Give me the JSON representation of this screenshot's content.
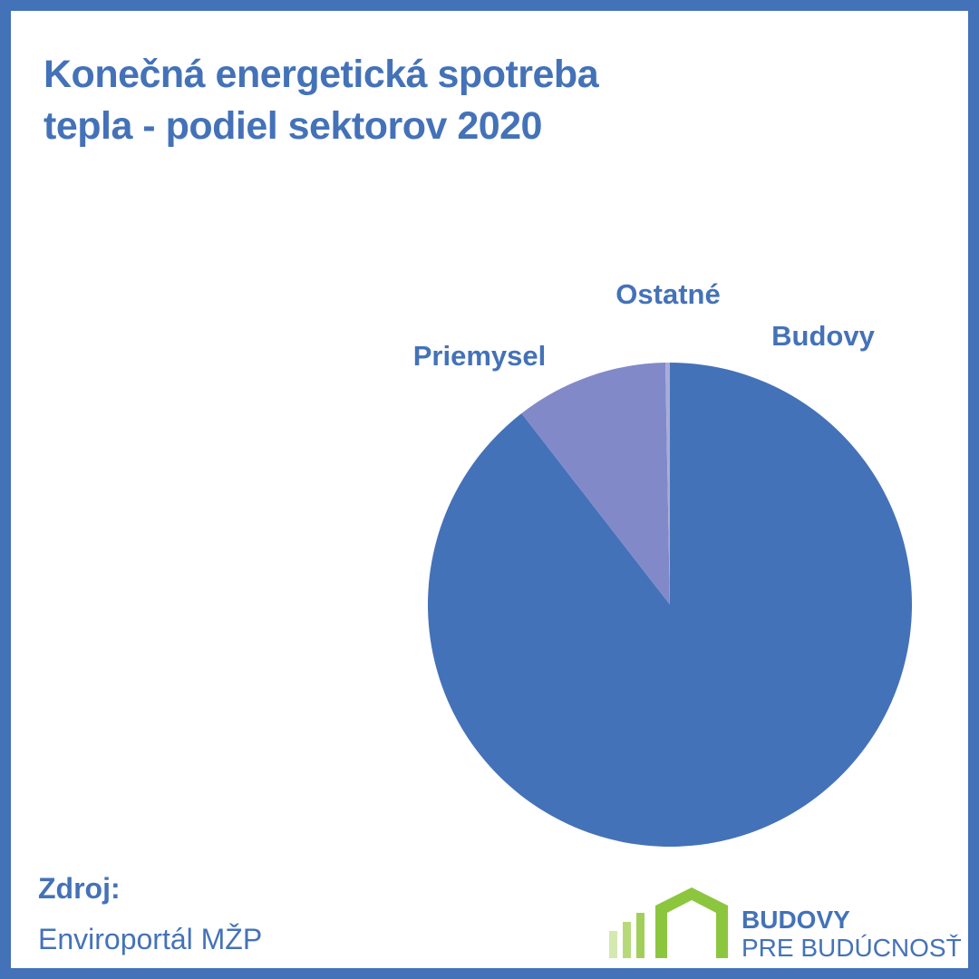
{
  "title_lines": [
    "Konečná energetická spotreba",
    "tepla - podiel sektorov 2020"
  ],
  "chart_data": {
    "type": "pie",
    "title": "Konečná energetická spotreba tepla - podiel sektorov 2020",
    "start_angle_deg": 0,
    "direction": "clockwise",
    "slices": [
      {
        "label": "Budovy",
        "value": 89.5,
        "color": "#4472b8"
      },
      {
        "label": "Priemysel",
        "value": 10.2,
        "color": "#8289c9"
      },
      {
        "label": "Ostatné",
        "value": 0.3,
        "color": "#a8acd9"
      }
    ],
    "unit": "%"
  },
  "source": {
    "label": "Zdroj:",
    "value": "Enviroportál MŽP"
  },
  "logo": {
    "line1": "BUDOVY",
    "line2": "PRE BUDÚCNOSŤ",
    "accent_color": "#8cc63f"
  }
}
